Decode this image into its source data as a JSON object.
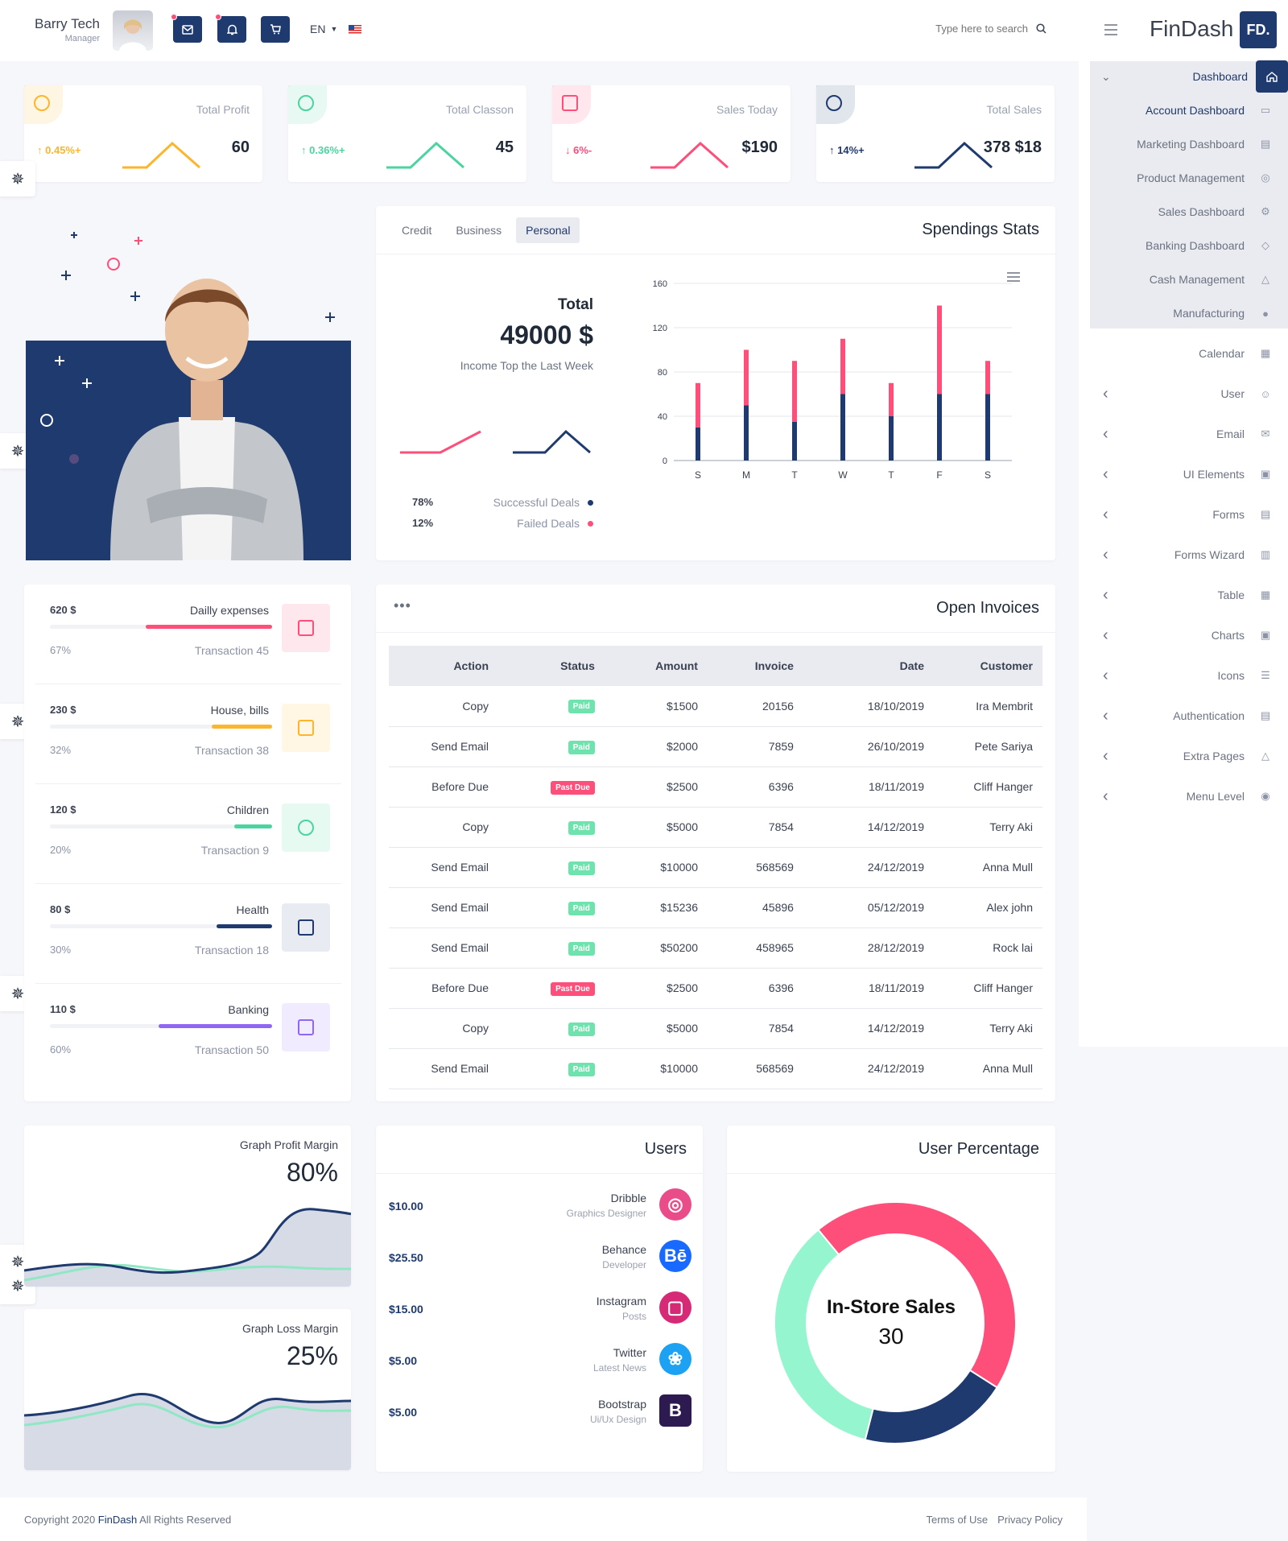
{
  "header": {
    "user_name": "Barry Tech",
    "user_role": "Manager",
    "language": "EN",
    "search_placeholder": "Type here to search",
    "brand": "FinDash",
    "brand_badge": "FD."
  },
  "stats": [
    {
      "label": "Total Profit",
      "change": "0.45%+",
      "value": "60",
      "color": "#fdb52c",
      "direction": "up"
    },
    {
      "label": "Total Classon",
      "change": "0.36%+",
      "value": "45",
      "color": "#4cd4a0",
      "direction": "up"
    },
    {
      "label": "Sales Today",
      "change": "6%-",
      "value": "$190",
      "color": "#fe4e7a",
      "direction": "down"
    },
    {
      "label": "Total Sales",
      "change": "14%+",
      "value": "378 $18",
      "color": "#1f3a6e",
      "direction": "up"
    }
  ],
  "spendings": {
    "tabs": [
      "Credit",
      "Business",
      "Personal"
    ],
    "active_tab": "Personal",
    "title": "Spendings Stats",
    "total_label": "Total",
    "total_value": "49000 $",
    "subtitle": "Income Top the Last Week",
    "legend": [
      {
        "pct": "78%",
        "label": "Successful Deals",
        "color": "#1f3a6e"
      },
      {
        "pct": "12%",
        "label": "Failed Deals",
        "color": "#fe4e7a"
      }
    ]
  },
  "chart_data": {
    "type": "bar",
    "stacked": true,
    "categories": [
      "S",
      "M",
      "T",
      "W",
      "T",
      "F",
      "S"
    ],
    "ylim": [
      0,
      160
    ],
    "yticks": [
      0,
      40,
      80,
      120,
      160
    ],
    "series": [
      {
        "values": [
          30,
          50,
          35,
          60,
          40,
          60,
          60
        ],
        "color": "#1f3a6e"
      },
      {
        "values": [
          40,
          50,
          55,
          50,
          30,
          80,
          30
        ],
        "color": "#fe4e7a"
      }
    ]
  },
  "expenses": [
    {
      "amount": "620 $",
      "category": "Dailly expenses",
      "percent": "67%",
      "transactions": "Transaction 45",
      "fill": 0.57,
      "color": "#fe4e7a",
      "bg": "#ffe7ee",
      "icon": "bag-icon"
    },
    {
      "amount": "230 $",
      "category": "House, bills",
      "percent": "32%",
      "transactions": "Transaction 38",
      "fill": 0.27,
      "color": "#fdb52c",
      "bg": "#fff6e4",
      "icon": "home-icon"
    },
    {
      "amount": "120 $",
      "category": "Children",
      "percent": "20%",
      "transactions": "Transaction 9",
      "fill": 0.17,
      "color": "#4cd4a0",
      "bg": "#e6faf2",
      "icon": "ball-icon"
    },
    {
      "amount": "80 $",
      "category": "Health",
      "percent": "30%",
      "transactions": "Transaction 18",
      "fill": 0.25,
      "color": "#1f3a6e",
      "bg": "#e8ebf1",
      "icon": "hospital-icon"
    },
    {
      "amount": "110 $",
      "category": "Banking",
      "percent": "60%",
      "transactions": "Transaction 50",
      "fill": 0.51,
      "color": "#8f67f4",
      "bg": "#f0ebff",
      "icon": "bank-icon"
    }
  ],
  "invoices": {
    "title": "Open Invoices",
    "columns": [
      "Action",
      "Status",
      "Amount",
      "Invoice",
      "Date",
      "Customer"
    ],
    "rows": [
      [
        "Copy",
        "Paid",
        "$1500",
        "20156",
        "18/10/2019",
        "Ira Membrit"
      ],
      [
        "Send Email",
        "Paid",
        "$2000",
        "7859",
        "26/10/2019",
        "Pete Sariya"
      ],
      [
        "Before Due",
        "Past Due",
        "$2500",
        "6396",
        "18/11/2019",
        "Cliff Hanger"
      ],
      [
        "Copy",
        "Paid",
        "$5000",
        "7854",
        "14/12/2019",
        "Terry Aki"
      ],
      [
        "Send Email",
        "Paid",
        "$10000",
        "568569",
        "24/12/2019",
        "Anna Mull"
      ],
      [
        "Send Email",
        "Paid",
        "$15236",
        "45896",
        "05/12/2019",
        "Alex john"
      ],
      [
        "Send Email",
        "Paid",
        "$50200",
        "458965",
        "28/12/2019",
        "Rock lai"
      ],
      [
        "Before Due",
        "Past Due",
        "$2500",
        "6396",
        "18/11/2019",
        "Cliff Hanger"
      ],
      [
        "Copy",
        "Paid",
        "$5000",
        "7854",
        "14/12/2019",
        "Terry Aki"
      ],
      [
        "Send Email",
        "Paid",
        "$10000",
        "568569",
        "24/12/2019",
        "Anna Mull"
      ]
    ]
  },
  "graph_profit": {
    "title": "Graph Profit Margin",
    "value": "80%"
  },
  "graph_loss": {
    "title": "Graph Loss Margin",
    "value": "25%"
  },
  "users": {
    "title": "Users",
    "rows": [
      {
        "amount": "$10.00",
        "name": "Dribble",
        "role": "Graphics Designer",
        "icon": "dribbble-icon",
        "color": "#ea4c89"
      },
      {
        "amount": "$25.50",
        "name": "Behance",
        "role": "Developer",
        "icon": "behance-icon",
        "color": "#1769ff"
      },
      {
        "amount": "$15.00",
        "name": "Instagram",
        "role": "Posts",
        "icon": "instagram-icon",
        "color": "#d62976"
      },
      {
        "amount": "$5.00",
        "name": "Twitter",
        "role": "Latest News",
        "icon": "twitter-icon",
        "color": "#1da1f2"
      },
      {
        "amount": "$5.00",
        "name": "Bootstrap",
        "role": "Ui/Ux Design",
        "icon": "bootstrap-icon",
        "color": "#2d1a50"
      }
    ]
  },
  "user_percentage": {
    "title": "User Percentage",
    "center_label": "In-Store Sales",
    "center_value": "30",
    "segments": [
      {
        "value": 45,
        "color": "#fe4e7a"
      },
      {
        "value": 20,
        "color": "#1f3a6e"
      },
      {
        "value": 35,
        "color": "#94f5cf"
      }
    ]
  },
  "sidebar": {
    "group": "Dashboard",
    "sub": [
      "Account Dashboard",
      "Marketing Dashboard",
      "Product Management",
      "Sales Dashboard",
      "Banking Dashboard",
      "Cash Management",
      "Manufacturing"
    ],
    "items": [
      "Calendar",
      "User",
      "Email",
      "UI Elements",
      "Forms",
      "Forms Wizard",
      "Table",
      "Charts",
      "Icons",
      "Authentication",
      "Extra Pages",
      "Menu Level"
    ]
  },
  "footer": {
    "copyright_prefix": "Copyright 2020 ",
    "brand": "FinDash",
    "copyright_suffix": " All Rights Reserved",
    "terms": "Terms of Use",
    "privacy": "Privacy Policy"
  }
}
